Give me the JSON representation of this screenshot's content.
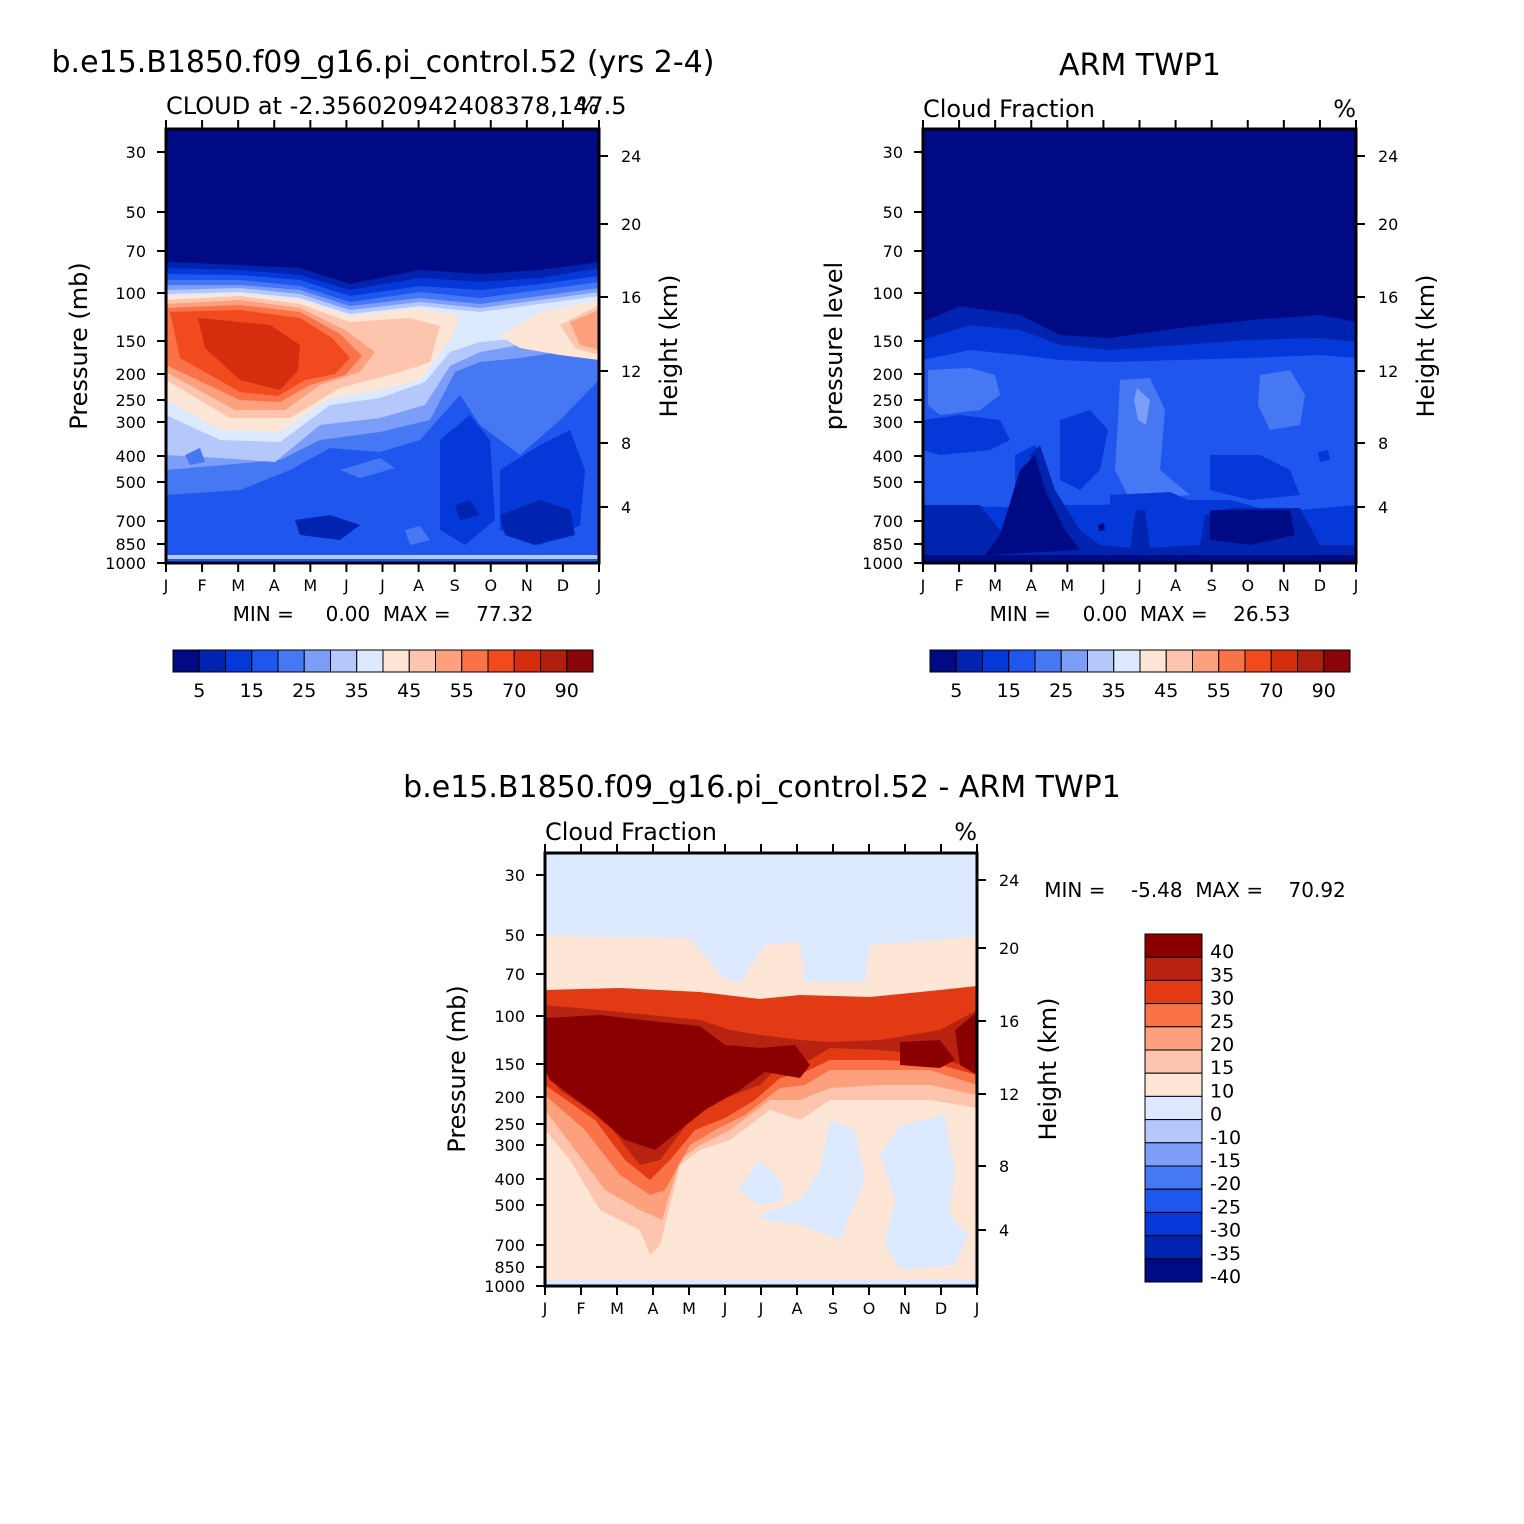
{
  "colors": {
    "seq": [
      "#000a84",
      "#0023b0",
      "#0538d8",
      "#1e56ee",
      "#4678f4",
      "#7c9ef8",
      "#b4c8fc",
      "#dce9ff",
      "#fee6d6",
      "#fdc5ad",
      "#fca07e",
      "#fa7248",
      "#f04a1e",
      "#d52e0e",
      "#b01e0e",
      "#8a0508"
    ],
    "diff": [
      "#000a84",
      "#0023b0",
      "#0538d8",
      "#1e56ee",
      "#4678f4",
      "#7c9ef8",
      "#b4c8fc",
      "#dce9ff",
      "#fee6d6",
      "#fdc5ad",
      "#fca07e",
      "#fa7248",
      "#e23a14",
      "#b82210",
      "#8a0000"
    ]
  },
  "chart_data": [
    {
      "id": "model",
      "type": "contour",
      "main_title": "b.e15.B1850.f09_g16.pi_control.52 (yrs 2-4)",
      "left_subtitle": "CLOUD at -2.356020942408378,147.5",
      "right_subtitle": "%",
      "ylabel": "Pressure (mb)",
      "y2label": "Height (km)",
      "x_ticks": [
        "J",
        "F",
        "M",
        "A",
        "M",
        "J",
        "J",
        "A",
        "S",
        "O",
        "N",
        "D",
        "J"
      ],
      "y_ticks": [
        "30",
        "50",
        "70",
        "100",
        "150",
        "200",
        "250",
        "300",
        "400",
        "500",
        "700",
        "850",
        "1000"
      ],
      "y2_ticks": [
        "24",
        "20",
        "16",
        "12",
        "8",
        "4"
      ],
      "stats_text": "MIN =     0.00  MAX =    77.32",
      "min": 0.0,
      "max": 77.32,
      "colorbar_labels": [
        "5",
        "15",
        "25",
        "35",
        "45",
        "55",
        "70",
        "90"
      ]
    },
    {
      "id": "obs",
      "type": "contour",
      "main_title": "ARM TWP1",
      "left_subtitle": "Cloud Fraction",
      "right_subtitle": "%",
      "ylabel": "pressure level",
      "y2label": "Height (km)",
      "x_ticks": [
        "J",
        "F",
        "M",
        "A",
        "M",
        "J",
        "J",
        "A",
        "S",
        "O",
        "N",
        "D",
        "J"
      ],
      "y_ticks": [
        "30",
        "50",
        "70",
        "100",
        "150",
        "200",
        "250",
        "300",
        "400",
        "500",
        "700",
        "850",
        "1000"
      ],
      "y2_ticks": [
        "24",
        "20",
        "16",
        "12",
        "8",
        "4"
      ],
      "stats_text": "MIN =     0.00  MAX =    26.53",
      "min": 0.0,
      "max": 26.53,
      "colorbar_labels": [
        "5",
        "15",
        "25",
        "35",
        "45",
        "55",
        "70",
        "90"
      ]
    },
    {
      "id": "diff",
      "type": "contour",
      "main_title": "b.e15.B1850.f09_g16.pi_control.52 - ARM TWP1",
      "left_subtitle": "Cloud Fraction",
      "right_subtitle": "%",
      "ylabel": "Pressure (mb)",
      "y2label": "Height (km)",
      "x_ticks": [
        "J",
        "F",
        "M",
        "A",
        "M",
        "J",
        "J",
        "A",
        "S",
        "O",
        "N",
        "D",
        "J"
      ],
      "y_ticks": [
        "30",
        "50",
        "70",
        "100",
        "150",
        "200",
        "250",
        "300",
        "400",
        "500",
        "700",
        "850",
        "1000"
      ],
      "y2_ticks": [
        "24",
        "20",
        "16",
        "12",
        "8",
        "4"
      ],
      "stats_text": "MIN =    -5.48  MAX =    70.92",
      "min": -5.48,
      "max": 70.92,
      "colorbar_labels": [
        "40",
        "35",
        "30",
        "25",
        "20",
        "15",
        "10",
        "0",
        "-10",
        "-15",
        "-20",
        "-25",
        "-30",
        "-35",
        "-40"
      ]
    }
  ]
}
